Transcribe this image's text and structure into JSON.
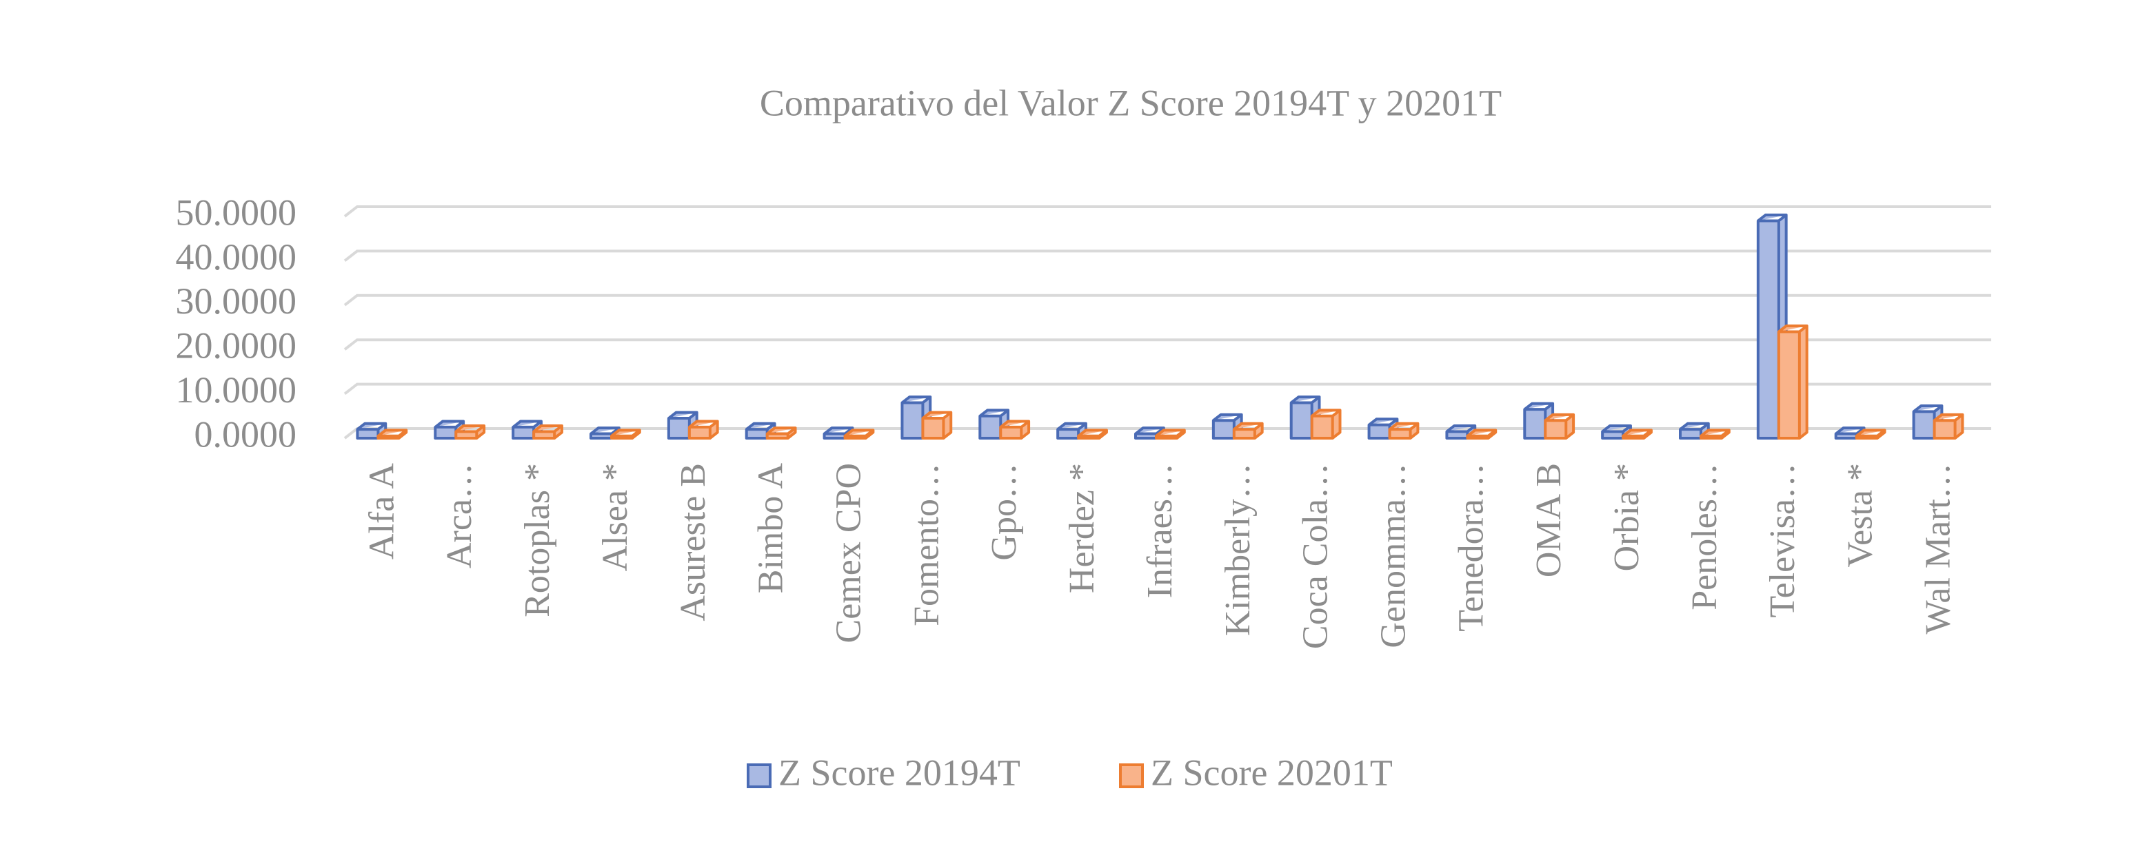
{
  "chart_data": {
    "type": "bar3d",
    "title": "Comparativo del Valor Z Score 20194T y 20201T",
    "categories": [
      "Alfa A",
      "Arca…",
      "Rotoplas *",
      "Alsea *",
      "Asureste B",
      "Bimbo A",
      "Cemex CPO",
      "Fomento…",
      "Gpo…",
      "Herdez *",
      "Infraes…",
      "Kimberly…",
      "Coca Cola…",
      "Genomma…",
      "Tenedora…",
      "OMA B",
      "Orbia *",
      "Penoles…",
      "Televisa…",
      "Vesta *",
      "Wal Mart…"
    ],
    "series": [
      {
        "name": "Z Score 20194T",
        "color": "#4a6bb5",
        "values": [
          2,
          2.5,
          2.5,
          1,
          4.5,
          2,
          1,
          8,
          5,
          2,
          1,
          4,
          8,
          3,
          1.5,
          6.5,
          1.5,
          2,
          49,
          1,
          6
        ]
      },
      {
        "name": "Z Score 20201T",
        "color": "#ed7d31",
        "values": [
          0.5,
          1.5,
          1.5,
          0.5,
          2.5,
          1,
          0.5,
          4.5,
          2.5,
          0.5,
          0.5,
          2,
          5,
          2,
          0.5,
          4,
          0.5,
          0.5,
          24,
          0.5,
          4
        ]
      }
    ],
    "ylim": [
      0,
      50
    ],
    "yticks": [
      {
        "value": 0,
        "label": "0.0000"
      },
      {
        "value": 10,
        "label": "10.0000"
      },
      {
        "value": 20,
        "label": "20.0000"
      },
      {
        "value": 30,
        "label": "30.0000"
      },
      {
        "value": 40,
        "label": "40.0000"
      },
      {
        "value": 50,
        "label": "50.0000"
      }
    ],
    "grid": true,
    "legend": "bottom"
  }
}
